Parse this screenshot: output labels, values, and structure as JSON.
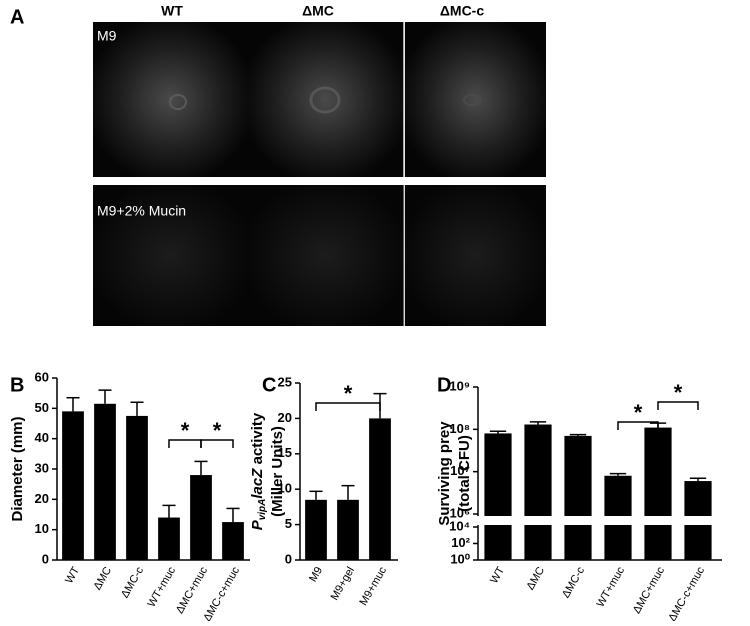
{
  "panel_a": {
    "panel": "A",
    "columns": [
      "WT",
      "ΔMC",
      "ΔMC-c"
    ],
    "rows": [
      "M9",
      "M9+2% Mucin"
    ]
  },
  "chart_data": [
    {
      "type": "bar",
      "panel": "B",
      "categories": [
        "WT",
        "ΔMC",
        "ΔMC-c",
        "WT+muc",
        "ΔMC+muc",
        "ΔMC-c+muc"
      ],
      "values": [
        49,
        51.5,
        47.5,
        14,
        28,
        12.5
      ],
      "errors": [
        4.5,
        4.5,
        4.5,
        4,
        4.5,
        4.5
      ],
      "color": "#000000",
      "ylim": [
        0,
        60
      ],
      "yticks": [
        0,
        10,
        20,
        30,
        40,
        50,
        60
      ],
      "ylabel": [
        "Diameter (mm)"
      ],
      "annotations": [
        "*",
        "*"
      ]
    },
    {
      "type": "bar",
      "panel": "C",
      "categories": [
        "M9",
        "M9+gel",
        "M9+muc"
      ],
      "values": [
        8.5,
        8.5,
        20
      ],
      "errors": [
        1.2,
        2,
        3.5
      ],
      "color": "#000000",
      "ylim": [
        0,
        25
      ],
      "yticks": [
        0,
        5,
        10,
        15,
        20,
        25
      ],
      "ylabel_parts": {
        "p": "P",
        "sub": "vipA",
        "italic": "lacZ",
        "rest": " activity",
        "line2": "(Miller Units)"
      },
      "annotations": [
        "*"
      ]
    },
    {
      "type": "bar",
      "panel": "D",
      "categories": [
        "WT",
        "ΔMC",
        "ΔMC-c",
        "WT+muc",
        "ΔMC+muc",
        "ΔMC-c+muc"
      ],
      "values": [
        80000000,
        130000000,
        70000000,
        8000000,
        110000000,
        6000000
      ],
      "errors": [
        10000000,
        20000000,
        5000000,
        1000000,
        30000000,
        1000000
      ],
      "color": "#000000",
      "log": true,
      "ylim": [
        1,
        1000000000
      ],
      "axis_break": [
        10000,
        1000000
      ],
      "yticks": [
        {
          "value": 1000000000,
          "label": "10⁹"
        },
        {
          "value": 100000000,
          "label": "10⁸"
        },
        {
          "value": 10000000,
          "label": "10⁷"
        },
        {
          "value": 1000000,
          "label": "10⁶"
        },
        {
          "value": 10000,
          "label": "10⁴"
        },
        {
          "value": 100,
          "label": "10²"
        },
        {
          "value": 1,
          "label": "10⁰"
        }
      ],
      "ylabel": [
        "Surviving prey",
        "(total CFU)"
      ],
      "annotations": [
        "*",
        "*"
      ]
    }
  ]
}
